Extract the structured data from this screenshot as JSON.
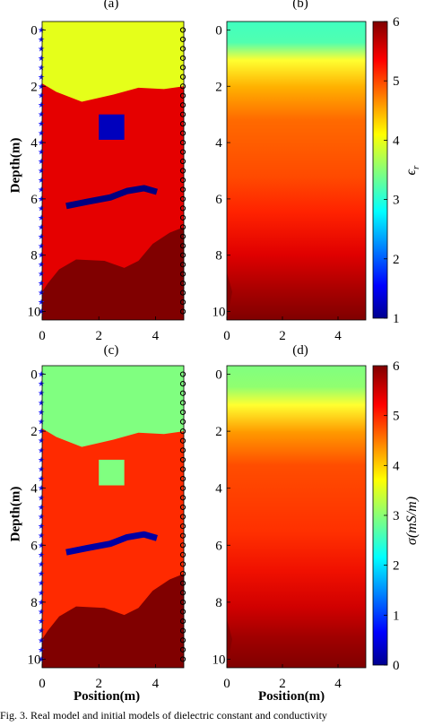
{
  "panels": {
    "a": "(a)",
    "b": "(b)",
    "c": "(c)",
    "d": "(d)"
  },
  "axes": {
    "ylabel": "Depth(m)",
    "xlabel": "Position(m)",
    "x_ticks": [
      "0",
      "2",
      "4"
    ],
    "y_ticks": [
      "0",
      "2",
      "4",
      "6",
      "8",
      "10"
    ]
  },
  "colorbars": {
    "top": {
      "label": "ϵ",
      "label_sub": "r",
      "ticks": [
        "6",
        "5",
        "4",
        "3",
        "2",
        "1"
      ]
    },
    "bottom": {
      "label": "σ(mS/m)",
      "ticks": [
        "6",
        "5",
        "4",
        "3",
        "2",
        "1",
        "0"
      ]
    }
  },
  "caption": "Fig. 3.   Real model and initial models of dielectric constant and conductivity",
  "chart_data": [
    {
      "type": "heatmap",
      "title": "(a)",
      "ylabel": "Depth(m)",
      "xlim": [
        0,
        5
      ],
      "ylim": [
        10.3,
        -0.3
      ],
      "layers": [
        {
          "name": "top layer",
          "value": 4
        },
        {
          "name": "middle layer",
          "value": 5.5
        },
        {
          "name": "bottom layer",
          "value": 6
        },
        {
          "name": "square anomaly",
          "value": 1.3
        },
        {
          "name": "curved anomaly",
          "value": 1
        }
      ]
    },
    {
      "type": "heatmap",
      "title": "(b)",
      "xlim": [
        0,
        5
      ],
      "ylim": [
        10.3,
        -0.3
      ],
      "clim": [
        1,
        6
      ]
    },
    {
      "type": "heatmap",
      "title": "(c)",
      "ylabel": "Depth(m)",
      "xlabel": "Position(m)",
      "xlim": [
        0,
        5
      ],
      "ylim": [
        10.3,
        -0.3
      ],
      "layers": [
        {
          "name": "top layer",
          "value": 3
        },
        {
          "name": "middle layer",
          "value": 5
        },
        {
          "name": "bottom layer",
          "value": 6
        },
        {
          "name": "square anomaly",
          "value": 3
        },
        {
          "name": "curved anomaly",
          "value": 0.2
        }
      ]
    },
    {
      "type": "heatmap",
      "title": "(d)",
      "xlabel": "Position(m)",
      "xlim": [
        0,
        5
      ],
      "ylim": [
        10.3,
        -0.3
      ],
      "clim": [
        0,
        6
      ]
    }
  ]
}
